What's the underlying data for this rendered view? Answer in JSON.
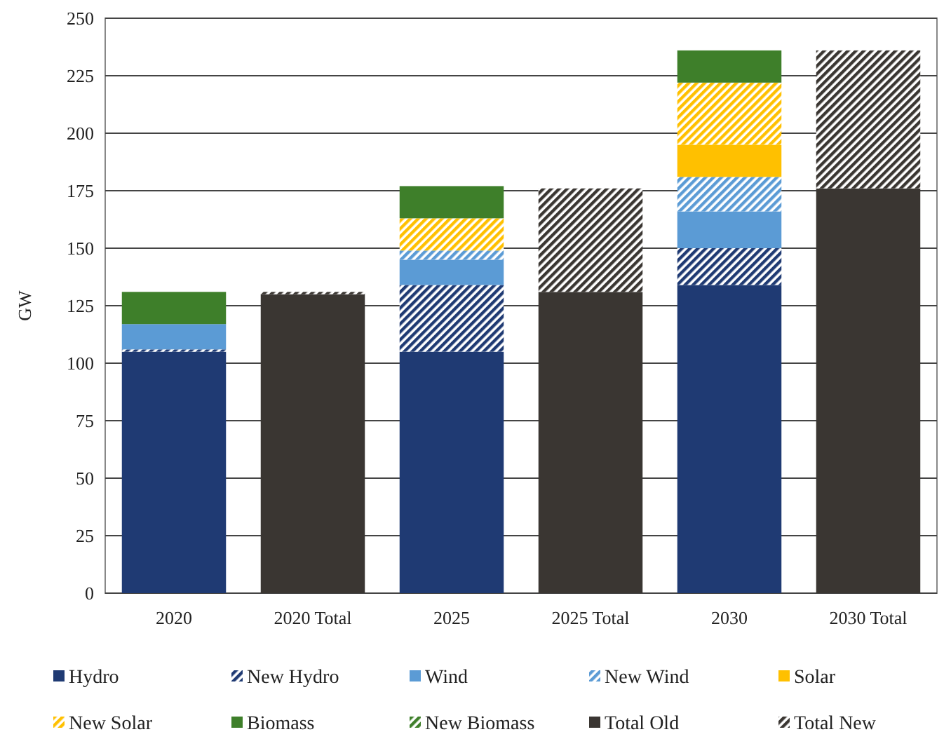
{
  "chart_data": {
    "type": "bar",
    "stacked": true,
    "ylabel": "GW",
    "categories": [
      "2020",
      "2020 Total",
      "2025",
      "2025 Total",
      "2030",
      "2030 Total"
    ],
    "ylim": [
      0,
      250
    ],
    "yticks": [
      0,
      25,
      50,
      75,
      100,
      125,
      150,
      175,
      200,
      225,
      250
    ],
    "grid": "y",
    "legend": "bottom",
    "series": [
      {
        "name": "Hydro",
        "color": "#1f3a73",
        "values": [
          105,
          null,
          105,
          null,
          134,
          null
        ]
      },
      {
        "name": "New Hydro",
        "color": "#1f3a73",
        "values": [
          1,
          null,
          29,
          null,
          16,
          null
        ]
      },
      {
        "name": "Wind",
        "color": "#5b9bd5",
        "values": [
          11,
          null,
          11,
          null,
          16,
          null
        ]
      },
      {
        "name": "New Wind",
        "color": "#5b9bd5",
        "values": [
          null,
          null,
          4,
          null,
          15,
          null
        ]
      },
      {
        "name": "Solar",
        "color": "#ffc000",
        "values": [
          null,
          null,
          null,
          null,
          14,
          null
        ]
      },
      {
        "name": "New Solar",
        "color": "#ffc000",
        "values": [
          null,
          null,
          14,
          null,
          27,
          null
        ]
      },
      {
        "name": "Biomass",
        "color": "#3e7f2a",
        "values": [
          14,
          null,
          14,
          null,
          14,
          null
        ]
      },
      {
        "name": "New Biomass",
        "color": "#3e7f2a",
        "values": [
          null,
          null,
          null,
          null,
          null,
          null
        ]
      },
      {
        "name": "Total Old",
        "color": "#3a3632",
        "values": [
          null,
          130,
          null,
          131,
          null,
          176
        ]
      },
      {
        "name": "Total New",
        "color": "#3a3632",
        "values": [
          null,
          1,
          null,
          45,
          null,
          60
        ]
      }
    ]
  }
}
